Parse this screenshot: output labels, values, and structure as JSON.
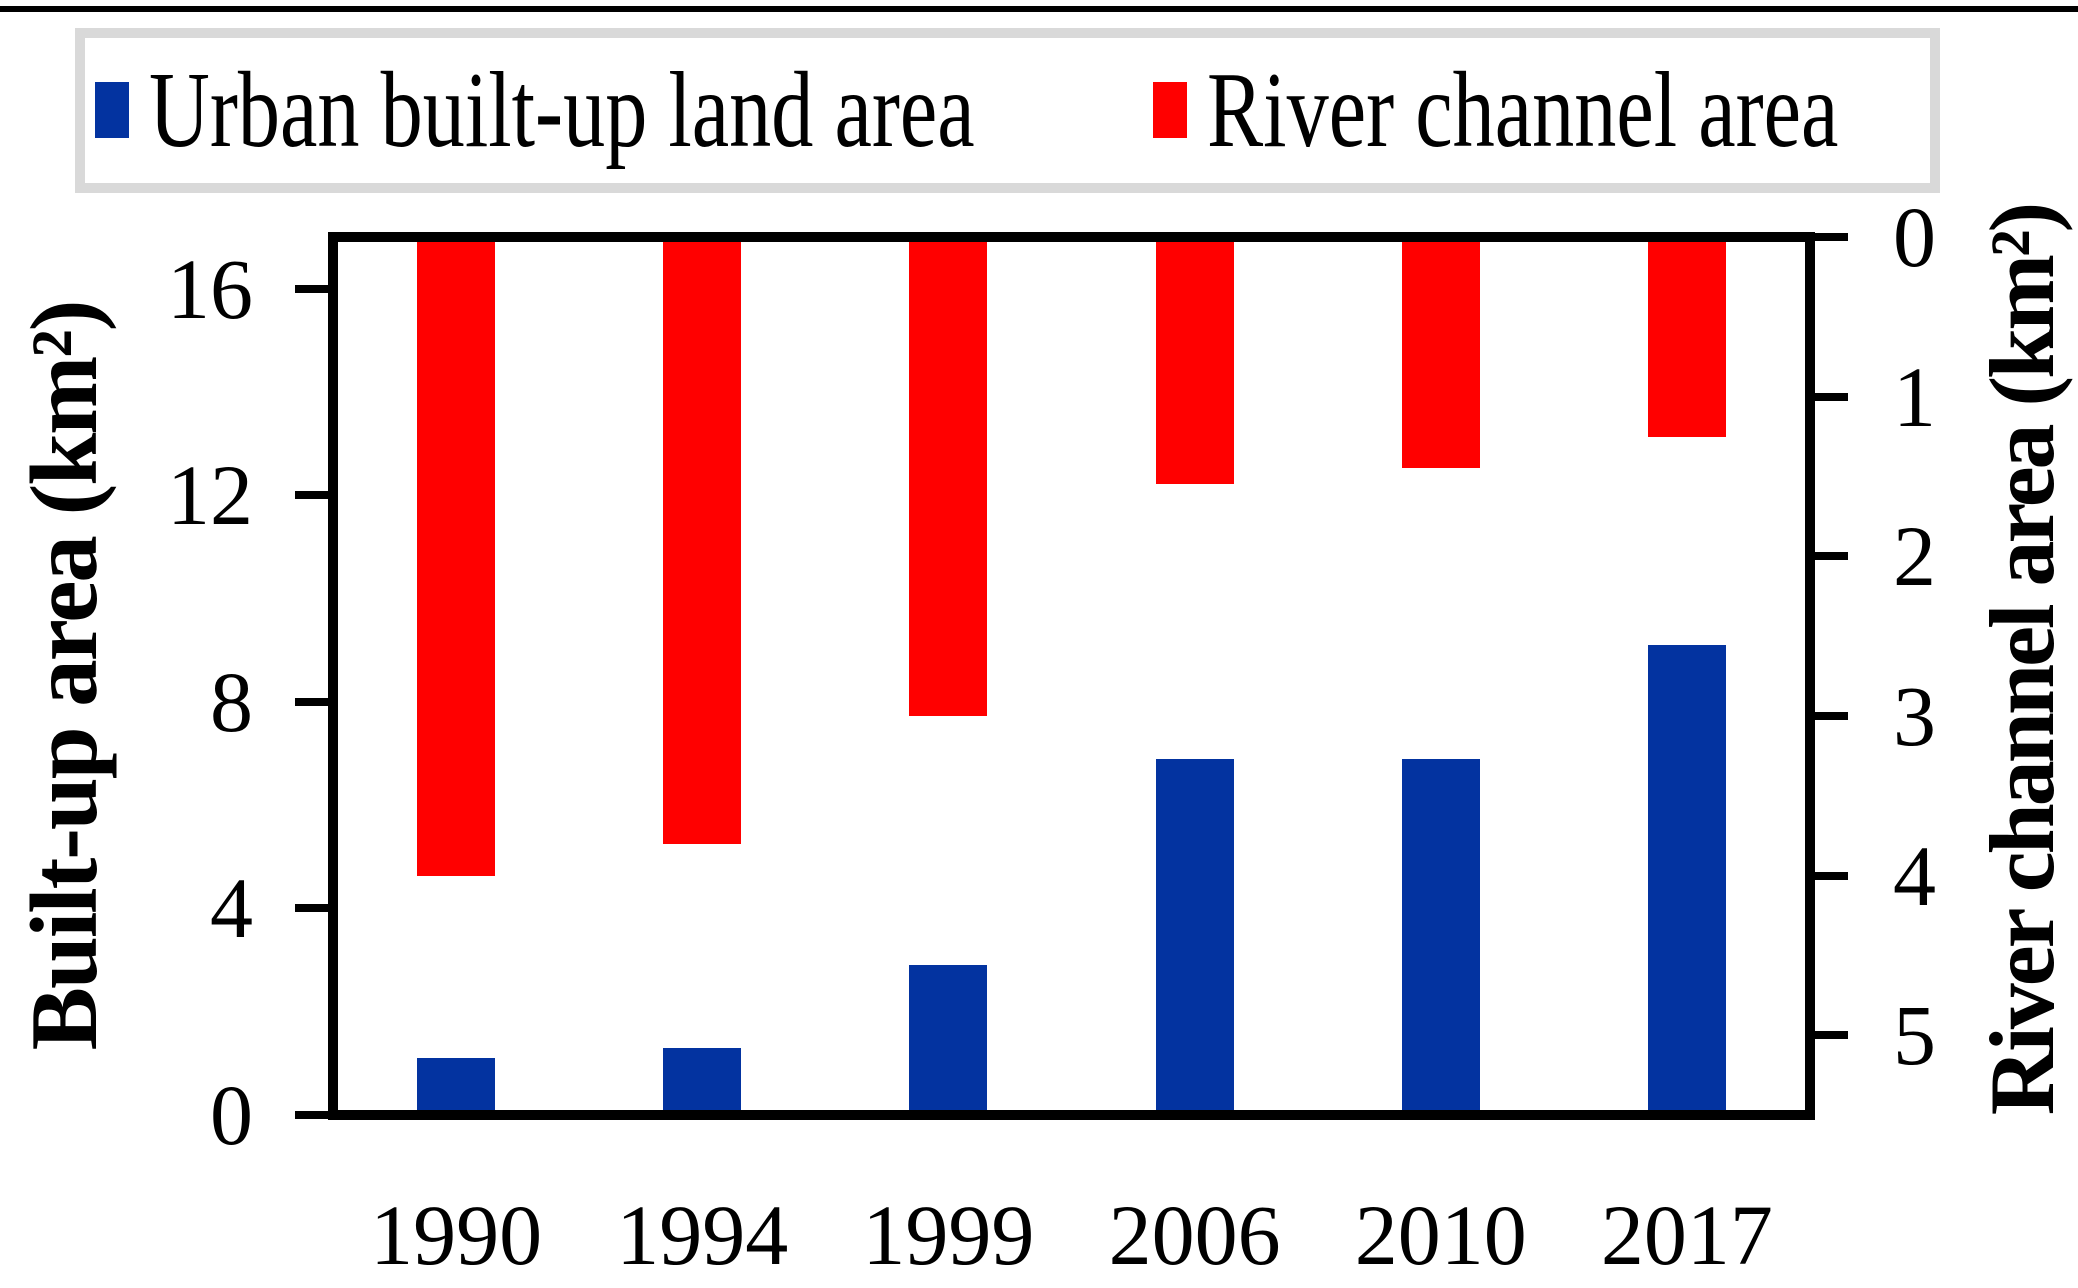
{
  "legend": {
    "border_color": "#d9d9d9",
    "items": [
      {
        "label": "Urban built-up land area",
        "color": "#0333a0"
      },
      {
        "label": "River channel area",
        "color": "#ff0000"
      }
    ]
  },
  "left_axis": {
    "title": "Built-up area (km²)",
    "tick_labels": [
      "0",
      "4",
      "8",
      "12",
      "16"
    ]
  },
  "right_axis": {
    "title": "River channel area (km²)",
    "tick_labels": [
      "0",
      "1",
      "2",
      "3",
      "4",
      "5"
    ]
  },
  "x_axis": {
    "categories": [
      "1990",
      "1994",
      "1999",
      "2006",
      "2010",
      "2017"
    ]
  },
  "chart_data": {
    "type": "bar",
    "categories": [
      "1990",
      "1994",
      "1999",
      "2006",
      "2010",
      "2017"
    ],
    "series": [
      {
        "name": "Urban built-up land area",
        "axis": "left",
        "color": "#0333a0",
        "values": [
          1.1,
          1.3,
          2.9,
          6.9,
          6.9,
          9.1
        ]
      },
      {
        "name": "River channel area",
        "axis": "right",
        "color": "#ff0000",
        "values": [
          4.0,
          3.8,
          3.0,
          1.55,
          1.45,
          1.25
        ]
      }
    ],
    "title": "",
    "xlabel": "",
    "ylabel_left": "Built-up area (km²)",
    "ylabel_right": "River channel area (km²)",
    "left_ylim": [
      0,
      17
    ],
    "left_yticks": [
      0,
      4,
      8,
      12,
      16
    ],
    "right_ylim": [
      0,
      5.5
    ],
    "right_yticks": [
      0,
      1,
      2,
      3,
      4,
      5
    ],
    "right_axis_inverted": true,
    "red_bars_anchored": "top",
    "blue_bars_anchored": "bottom",
    "grid": false,
    "legend_position": "top"
  }
}
